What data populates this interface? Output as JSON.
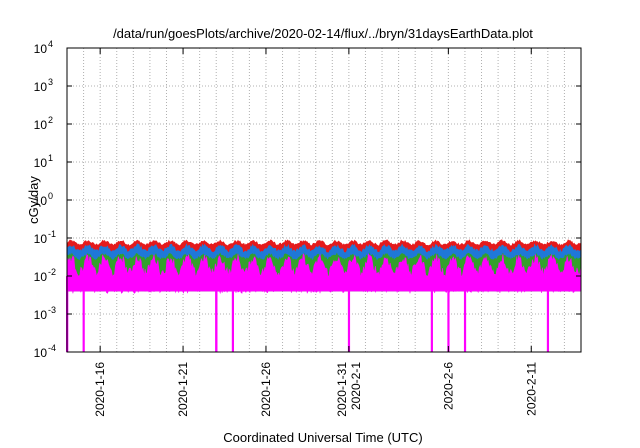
{
  "chart_data": {
    "type": "area",
    "title": "/data/run/goesPlots/archive/2020-02-14/flux/../bryn/31daysEarthData.plot",
    "xlabel": "Coordinated Universal Time (UTC)",
    "ylabel": "cGy/day",
    "y_scale": "log",
    "ylim": [
      0.0001,
      10000
    ],
    "xlim": [
      "2020-01-14",
      "2020-02-14"
    ],
    "grid": true,
    "legend": "none",
    "y_ticks": [
      {
        "value": 0.0001,
        "base": "10",
        "exp": "-4"
      },
      {
        "value": 0.001,
        "base": "10",
        "exp": "-3"
      },
      {
        "value": 0.01,
        "base": "10",
        "exp": "-2"
      },
      {
        "value": 0.1,
        "base": "10",
        "exp": "-1"
      },
      {
        "value": 1,
        "base": "10",
        "exp": "0"
      },
      {
        "value": 10,
        "base": "10",
        "exp": "1"
      },
      {
        "value": 100,
        "base": "10",
        "exp": "2"
      },
      {
        "value": 1000,
        "base": "10",
        "exp": "3"
      },
      {
        "value": 10000,
        "base": "10",
        "exp": "4"
      }
    ],
    "x_ticks": [
      {
        "date": "2020-01-16",
        "labels": [
          "2020-1-16"
        ]
      },
      {
        "date": "2020-01-21",
        "labels": [
          "2020-1-21"
        ]
      },
      {
        "date": "2020-01-26",
        "labels": [
          "2020-1-26"
        ]
      },
      {
        "date": "2020-01-31",
        "labels": [
          "2020-1-31",
          "2020-2-1"
        ]
      },
      {
        "date": "2020-02-06",
        "labels": [
          "2020-2-6"
        ]
      },
      {
        "date": "2020-02-11",
        "labels": [
          "2020-2-11"
        ]
      }
    ],
    "series": [
      {
        "color": "#e41a1c",
        "typical_range": [
          0.05,
          0.09
        ]
      },
      {
        "color": "#1f78d8",
        "typical_range": [
          0.03,
          0.07
        ]
      },
      {
        "color": "#33a02c",
        "typical_range": [
          0.02,
          0.04
        ]
      },
      {
        "color": "#ff00ff",
        "typical_range": [
          0.004,
          0.04
        ]
      }
    ],
    "dropouts": [
      "2020-01-14",
      "2020-01-14",
      "2020-01-15",
      "2020-01-23",
      "2020-01-23",
      "2020-01-24",
      "2020-01-31",
      "2020-02-05",
      "2020-02-06",
      "2020-02-07",
      "2020-02-12"
    ]
  }
}
